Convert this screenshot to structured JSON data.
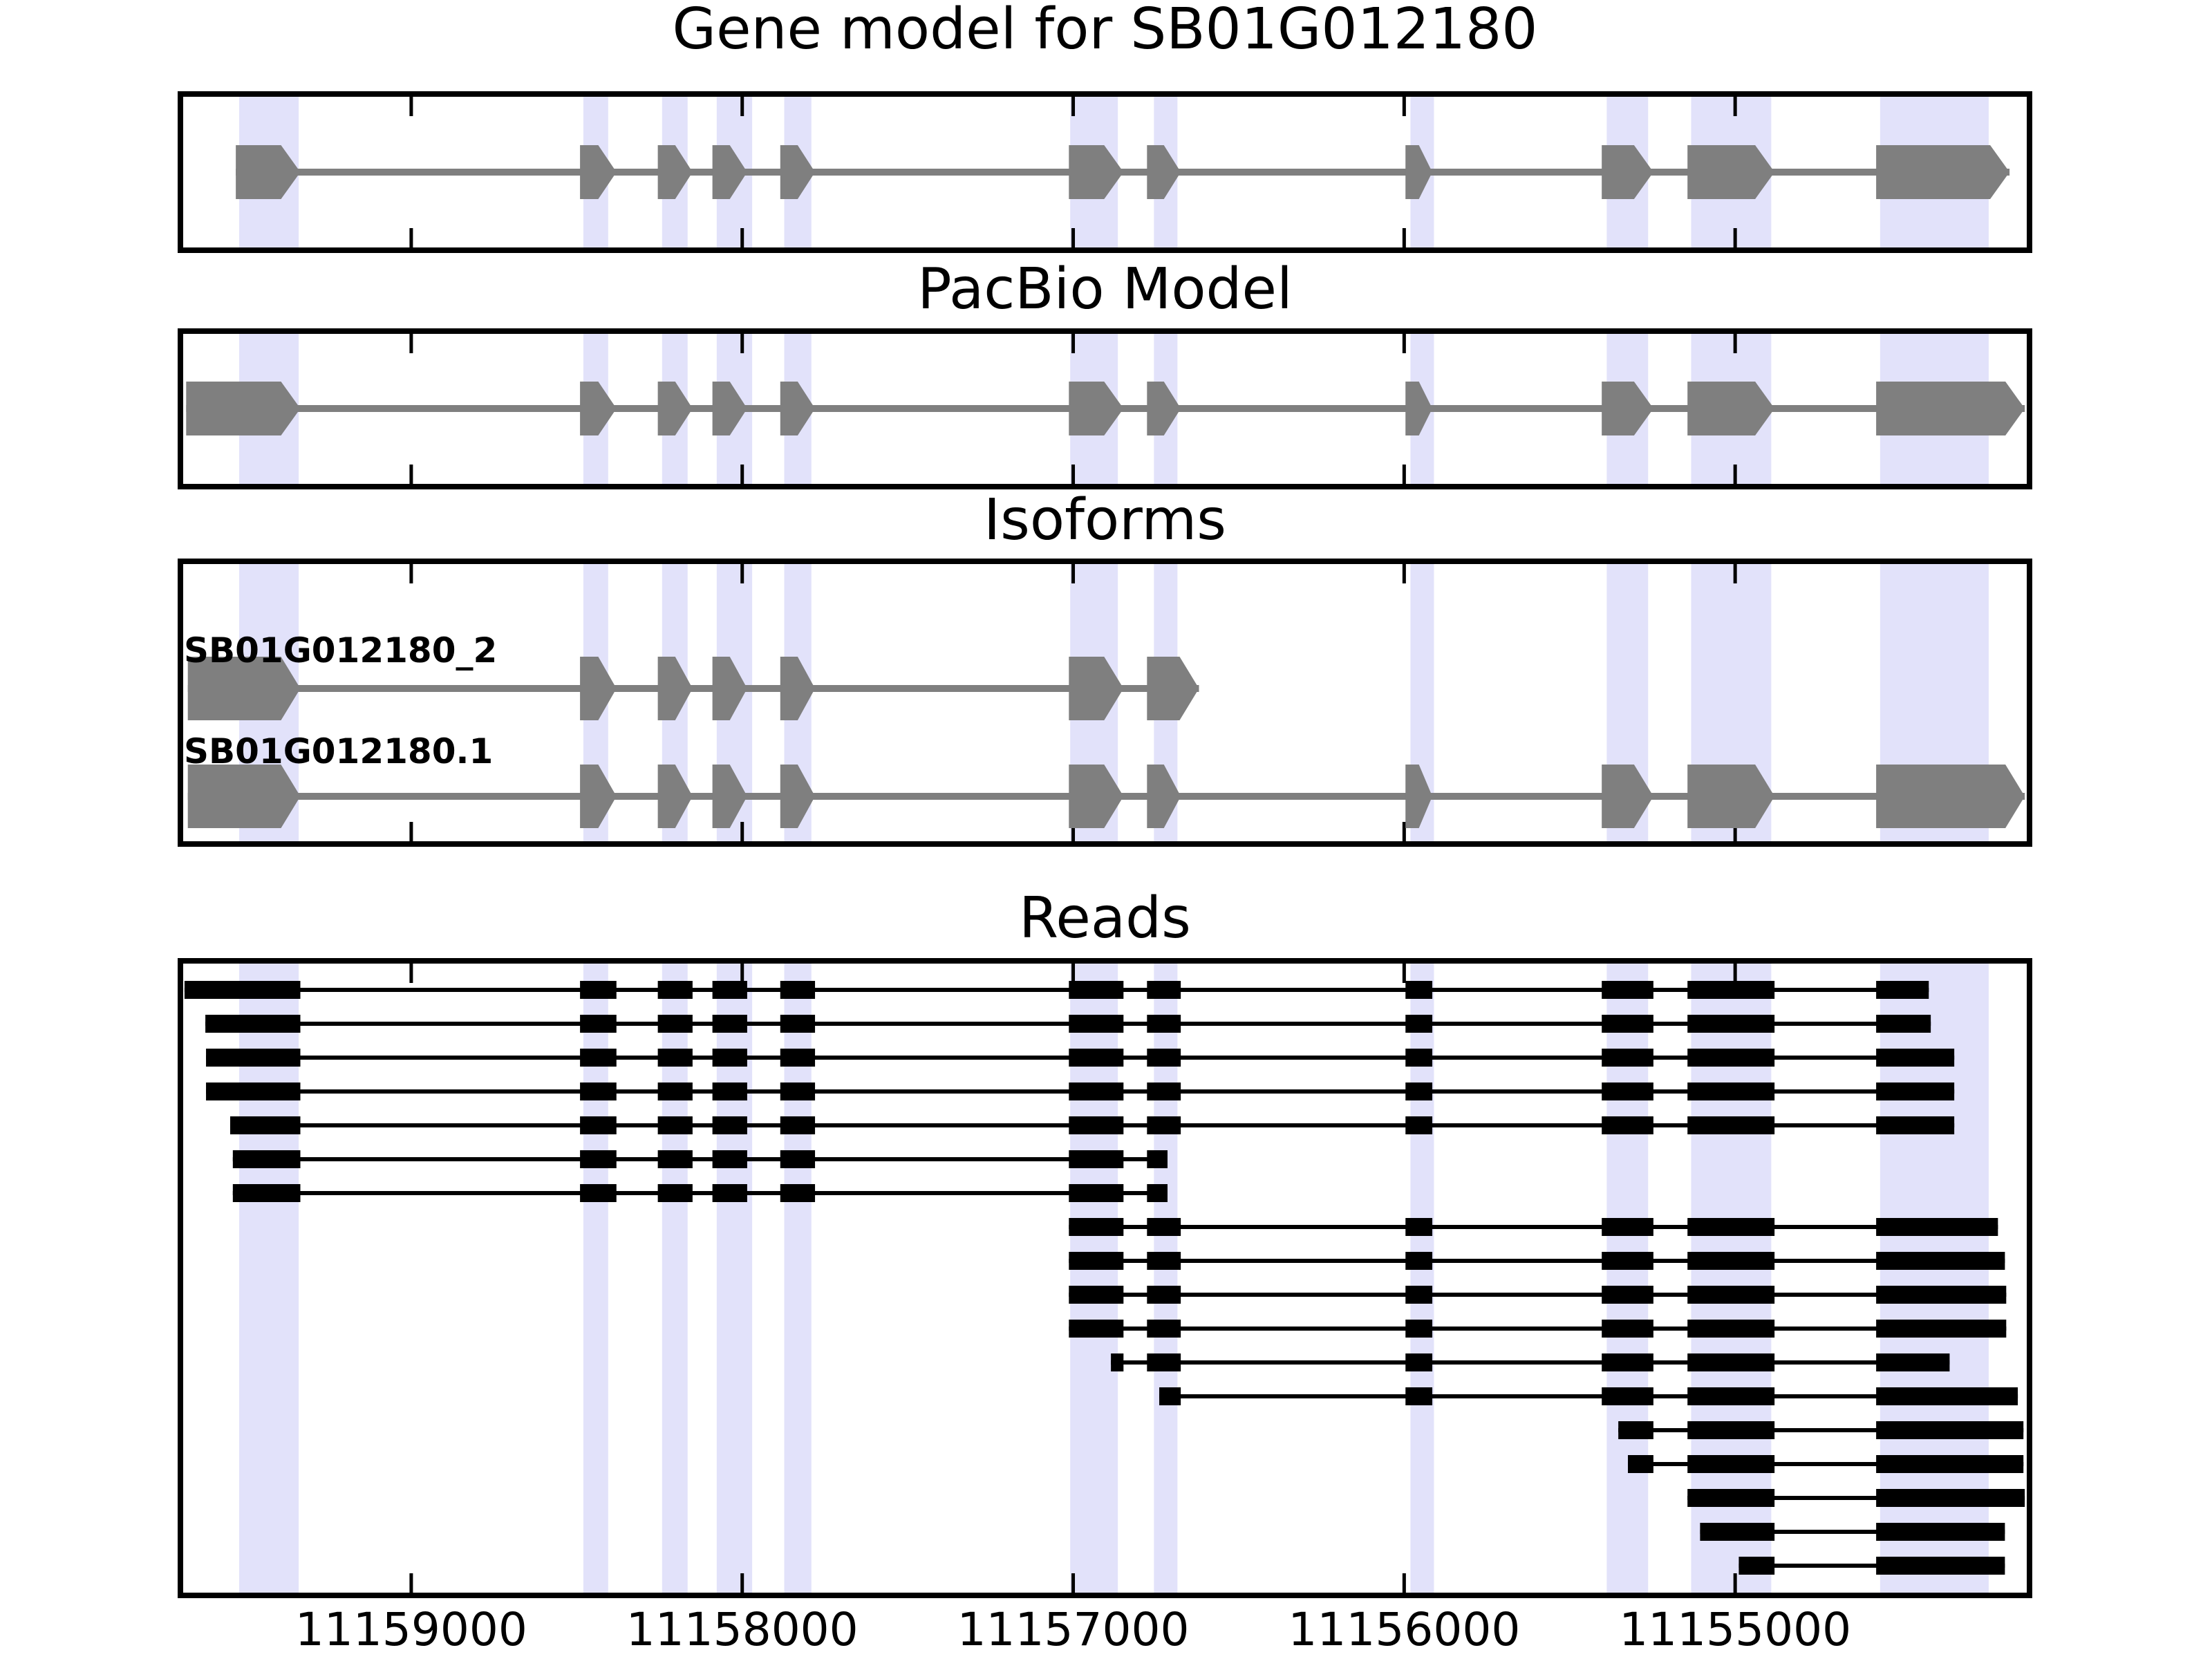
{
  "colors": {
    "highlight_band": "#e2e2fa",
    "gene_glyph": "#7f7f7f",
    "read_glyph": "#000000",
    "panel_border": "#000000",
    "text": "#000000",
    "background": "#ffffff"
  },
  "chart_data": {
    "type": "genomic-track-plot",
    "title": "Gene model for SB01G012180",
    "gene_id": "SB01G012180",
    "x_axis": {
      "left_value": 11159689,
      "right_value": 11154119,
      "x_decreases_left_to_right": true,
      "ticks": [
        {
          "value": 11159000,
          "label": "11159000"
        },
        {
          "value": 11158000,
          "label": "11158000"
        },
        {
          "value": 11157000,
          "label": "11157000"
        },
        {
          "value": 11156000,
          "label": "11156000"
        },
        {
          "value": 11155000,
          "label": "11155000"
        }
      ]
    },
    "highlight_regions": [
      [
        11159520,
        11159340
      ],
      [
        11158480,
        11158405
      ],
      [
        11158242,
        11158165
      ],
      [
        11158077,
        11157970
      ],
      [
        11157873,
        11157791
      ],
      [
        11157009,
        11156865
      ],
      [
        11156756,
        11156685
      ],
      [
        11155981,
        11155910
      ],
      [
        11155388,
        11155263
      ],
      [
        11155133,
        11154891
      ],
      [
        11154562,
        11154234
      ]
    ],
    "tracks": [
      {
        "title": "Gene model for SB01G012180",
        "kind": "transcript-track",
        "transcripts": [
          {
            "name": "",
            "direction": "right",
            "exons": [
              [
                11159530,
                11159335
              ],
              [
                11158490,
                11158380
              ],
              [
                11158255,
                11158150
              ],
              [
                11158090,
                11157985
              ],
              [
                11157885,
                11157780
              ],
              [
                11157013,
                11156848
              ],
              [
                11156777,
                11156675
              ],
              [
                11155996,
                11155915
              ],
              [
                11155403,
                11155247
              ],
              [
                11155144,
                11154881
              ],
              [
                11154574,
                11154171
              ]
            ]
          }
        ]
      },
      {
        "title": "PacBio Model",
        "kind": "transcript-track",
        "transcripts": [
          {
            "name": "",
            "direction": "right",
            "exons": [
              [
                11159680,
                11159335
              ],
              [
                11158490,
                11158380
              ],
              [
                11158255,
                11158150
              ],
              [
                11158090,
                11157985
              ],
              [
                11157885,
                11157780
              ],
              [
                11157013,
                11156848
              ],
              [
                11156777,
                11156675
              ],
              [
                11155996,
                11155915
              ],
              [
                11155403,
                11155247
              ],
              [
                11155144,
                11154881
              ],
              [
                11154574,
                11154125
              ]
            ]
          }
        ]
      },
      {
        "title": "Isoforms",
        "kind": "transcript-track",
        "transcripts": [
          {
            "name": "SB01G012180_2",
            "direction": "right",
            "exons": [
              [
                11159675,
                11159335
              ],
              [
                11158490,
                11158380
              ],
              [
                11158255,
                11158150
              ],
              [
                11158090,
                11157985
              ],
              [
                11157885,
                11157780
              ],
              [
                11157013,
                11156848
              ],
              [
                11156777,
                11156620
              ]
            ]
          },
          {
            "name": "SB01G012180.1",
            "direction": "right",
            "exons": [
              [
                11159675,
                11159335
              ],
              [
                11158490,
                11158380
              ],
              [
                11158255,
                11158150
              ],
              [
                11158090,
                11157985
              ],
              [
                11157885,
                11157780
              ],
              [
                11157013,
                11156848
              ],
              [
                11156777,
                11156675
              ],
              [
                11155996,
                11155915
              ],
              [
                11155403,
                11155247
              ],
              [
                11155144,
                11154881
              ],
              [
                11154574,
                11154125
              ]
            ]
          }
        ]
      },
      {
        "title": "Reads",
        "kind": "read-track",
        "reads": [
          {
            "blocks": [
              [
                11159685,
                11159335
              ],
              [
                11158490,
                11158380
              ],
              [
                11158255,
                11158150
              ],
              [
                11158090,
                11157985
              ],
              [
                11157885,
                11157780
              ],
              [
                11157013,
                11156848
              ],
              [
                11156777,
                11156675
              ],
              [
                11155996,
                11155915
              ],
              [
                11155403,
                11155247
              ],
              [
                11155144,
                11154881
              ],
              [
                11154574,
                11154415
              ]
            ]
          },
          {
            "blocks": [
              [
                11159622,
                11159335
              ],
              [
                11158490,
                11158380
              ],
              [
                11158255,
                11158150
              ],
              [
                11158090,
                11157985
              ],
              [
                11157885,
                11157780
              ],
              [
                11157013,
                11156848
              ],
              [
                11156777,
                11156675
              ],
              [
                11155996,
                11155915
              ],
              [
                11155403,
                11155247
              ],
              [
                11155144,
                11154881
              ],
              [
                11154574,
                11154409
              ]
            ]
          },
          {
            "blocks": [
              [
                11159620,
                11159335
              ],
              [
                11158490,
                11158380
              ],
              [
                11158255,
                11158150
              ],
              [
                11158090,
                11157985
              ],
              [
                11157885,
                11157780
              ],
              [
                11157013,
                11156848
              ],
              [
                11156777,
                11156675
              ],
              [
                11155996,
                11155915
              ],
              [
                11155403,
                11155247
              ],
              [
                11155144,
                11154881
              ],
              [
                11154574,
                11154338
              ]
            ]
          },
          {
            "blocks": [
              [
                11159620,
                11159335
              ],
              [
                11158490,
                11158380
              ],
              [
                11158255,
                11158150
              ],
              [
                11158090,
                11157985
              ],
              [
                11157885,
                11157780
              ],
              [
                11157013,
                11156848
              ],
              [
                11156777,
                11156675
              ],
              [
                11155996,
                11155915
              ],
              [
                11155403,
                11155247
              ],
              [
                11155144,
                11154881
              ],
              [
                11154574,
                11154338
              ]
            ]
          },
          {
            "blocks": [
              [
                11159547,
                11159335
              ],
              [
                11158490,
                11158380
              ],
              [
                11158255,
                11158150
              ],
              [
                11158090,
                11157985
              ],
              [
                11157885,
                11157780
              ],
              [
                11157013,
                11156848
              ],
              [
                11156777,
                11156675
              ],
              [
                11155996,
                11155915
              ],
              [
                11155403,
                11155247
              ],
              [
                11155144,
                11154881
              ],
              [
                11154574,
                11154338
              ]
            ]
          },
          {
            "blocks": [
              [
                11159539,
                11159335
              ],
              [
                11158490,
                11158380
              ],
              [
                11158255,
                11158150
              ],
              [
                11158090,
                11157985
              ],
              [
                11157885,
                11157780
              ],
              [
                11157013,
                11156848
              ],
              [
                11156777,
                11156715
              ]
            ]
          },
          {
            "blocks": [
              [
                11159539,
                11159335
              ],
              [
                11158490,
                11158380
              ],
              [
                11158255,
                11158150
              ],
              [
                11158090,
                11157985
              ],
              [
                11157885,
                11157780
              ],
              [
                11157013,
                11156848
              ],
              [
                11156777,
                11156715
              ]
            ]
          },
          {
            "blocks": [
              [
                11157013,
                11156848
              ],
              [
                11156777,
                11156675
              ],
              [
                11155996,
                11155915
              ],
              [
                11155403,
                11155247
              ],
              [
                11155144,
                11154881
              ],
              [
                11154574,
                11154206
              ]
            ]
          },
          {
            "blocks": [
              [
                11157013,
                11156848
              ],
              [
                11156777,
                11156675
              ],
              [
                11155996,
                11155915
              ],
              [
                11155403,
                11155247
              ],
              [
                11155144,
                11154881
              ],
              [
                11154574,
                11154185
              ]
            ]
          },
          {
            "blocks": [
              [
                11157013,
                11156848
              ],
              [
                11156777,
                11156675
              ],
              [
                11155996,
                11155915
              ],
              [
                11155403,
                11155247
              ],
              [
                11155144,
                11154881
              ],
              [
                11154574,
                11154181
              ]
            ]
          },
          {
            "blocks": [
              [
                11157013,
                11156848
              ],
              [
                11156777,
                11156675
              ],
              [
                11155996,
                11155915
              ],
              [
                11155403,
                11155247
              ],
              [
                11155144,
                11154881
              ],
              [
                11154574,
                11154181
              ]
            ]
          },
          {
            "blocks": [
              [
                11156886,
                11156848
              ],
              [
                11156777,
                11156675
              ],
              [
                11155996,
                11155915
              ],
              [
                11155403,
                11155247
              ],
              [
                11155144,
                11154881
              ],
              [
                11154574,
                11154352
              ]
            ]
          },
          {
            "blocks": [
              [
                11156740,
                11156675
              ],
              [
                11155996,
                11155915
              ],
              [
                11155403,
                11155247
              ],
              [
                11155144,
                11154881
              ],
              [
                11154574,
                11154146
              ]
            ]
          },
          {
            "blocks": [
              [
                11155353,
                11155247
              ],
              [
                11155144,
                11154881
              ],
              [
                11154574,
                11154129
              ]
            ]
          },
          {
            "blocks": [
              [
                11155324,
                11155247
              ],
              [
                11155144,
                11154881
              ],
              [
                11154574,
                11154129
              ]
            ]
          },
          {
            "blocks": [
              [
                11155144,
                11154881
              ],
              [
                11154574,
                11154125
              ]
            ]
          },
          {
            "blocks": [
              [
                11155106,
                11154881
              ],
              [
                11154574,
                11154185
              ]
            ]
          },
          {
            "blocks": [
              [
                11154989,
                11154881
              ],
              [
                11154574,
                11154185
              ]
            ]
          }
        ]
      }
    ]
  }
}
